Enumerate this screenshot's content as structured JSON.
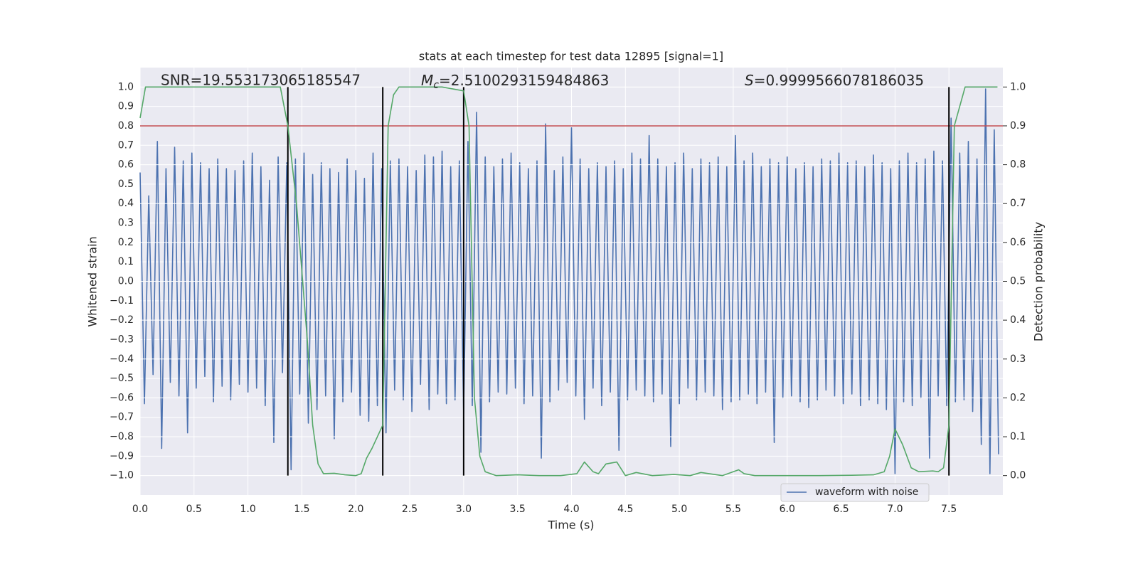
{
  "chart_data": {
    "type": "line",
    "title": "stats at each timestep for test data 12895 [signal=1]",
    "xlabel": "Time (s)",
    "ylabel": "Whitened strain",
    "y2label": "Detection probability",
    "annotations": [
      "SNR=19.553173065185547",
      {
        "base": "M",
        "sub": "c",
        "rest": "=2.5100293159484863"
      },
      {
        "base": "S",
        "rest": "=0.9999566078186035"
      }
    ],
    "xlim": [
      0,
      8.0
    ],
    "ylim": [
      -1.1,
      1.1
    ],
    "y2lim": [
      -0.05,
      1.05
    ],
    "xticks": [
      {
        "value": 0,
        "label": "0.0"
      },
      0.5,
      {
        "value": 1,
        "label": "1.0"
      },
      1.5,
      {
        "value": 2,
        "label": "2.0"
      },
      2.5,
      {
        "value": 3,
        "label": "3.0"
      },
      3.5,
      {
        "value": 4,
        "label": "4.0"
      },
      4.5,
      {
        "value": 5,
        "label": "5.0"
      },
      5.5,
      {
        "value": 6,
        "label": "6.0"
      },
      6.5,
      {
        "value": 7,
        "label": "7.0"
      },
      7.5
    ],
    "yticks": [
      {
        "value": -1,
        "label": "−1.0"
      },
      {
        "value": -0.9,
        "label": "−0.9"
      },
      {
        "value": -0.8,
        "label": "−0.8"
      },
      {
        "value": -0.7,
        "label": "−0.7"
      },
      {
        "value": -0.6,
        "label": "−0.6"
      },
      {
        "value": -0.5,
        "label": "−0.5"
      },
      {
        "value": -0.4,
        "label": "−0.4"
      },
      {
        "value": -0.3,
        "label": "−0.3"
      },
      {
        "value": -0.2,
        "label": "−0.2"
      },
      {
        "value": -0.1,
        "label": "−0.1"
      },
      {
        "value": 0,
        "label": "0.0"
      },
      0.1,
      0.2,
      0.3,
      0.4,
      0.5,
      0.6,
      0.7,
      0.8,
      0.9,
      {
        "value": 1,
        "label": "1.0"
      }
    ],
    "y2ticks": [
      {
        "value": 0,
        "label": "0.0"
      },
      0.1,
      0.2,
      0.3,
      0.4,
      0.5,
      0.6,
      0.7,
      0.8,
      0.9,
      {
        "value": 1,
        "label": "1.0"
      }
    ],
    "grid": true,
    "legend": "lower right",
    "threshold": {
      "value": 0.9,
      "axis": "y2",
      "color": "#c44e52"
    },
    "vlines": {
      "x": [
        1.37,
        2.25,
        3.0,
        7.5
      ],
      "span": [
        0,
        1
      ],
      "axis": "y2",
      "color": "#000000"
    },
    "series": [
      {
        "name": "waveform with noise",
        "color": "#4c72b0",
        "x": [
          0,
          0.04,
          0.08,
          0.12,
          0.16,
          0.2,
          0.24,
          0.28,
          0.32,
          0.36,
          0.4,
          0.44,
          0.48,
          0.52,
          0.56,
          0.6,
          0.64,
          0.68,
          0.72,
          0.76,
          0.8,
          0.84,
          0.88,
          0.92,
          0.96,
          1,
          1.04,
          1.08,
          1.12,
          1.16,
          1.2,
          1.24,
          1.28,
          1.32,
          1.36,
          1.4,
          1.44,
          1.48,
          1.52,
          1.56,
          1.6,
          1.64,
          1.68,
          1.72,
          1.76,
          1.8,
          1.84,
          1.88,
          1.92,
          1.96,
          2,
          2.04,
          2.08,
          2.12,
          2.16,
          2.2,
          2.24,
          2.28,
          2.32,
          2.36,
          2.4,
          2.44,
          2.48,
          2.52,
          2.56,
          2.6,
          2.64,
          2.68,
          2.72,
          2.76,
          2.8,
          2.84,
          2.88,
          2.92,
          2.96,
          3,
          3.04,
          3.08,
          3.12,
          3.16,
          3.2,
          3.24,
          3.28,
          3.32,
          3.36,
          3.4,
          3.44,
          3.48,
          3.52,
          3.56,
          3.6,
          3.64,
          3.68,
          3.72,
          3.76,
          3.8,
          3.84,
          3.88,
          3.92,
          3.96,
          4,
          4.04,
          4.08,
          4.12,
          4.16,
          4.2,
          4.24,
          4.28,
          4.32,
          4.36,
          4.4,
          4.44,
          4.48,
          4.52,
          4.56,
          4.6,
          4.64,
          4.68,
          4.72,
          4.76,
          4.8,
          4.84,
          4.88,
          4.92,
          4.96,
          5,
          5.04,
          5.08,
          5.12,
          5.16,
          5.2,
          5.24,
          5.28,
          5.32,
          5.36,
          5.4,
          5.44,
          5.48,
          5.52,
          5.56,
          5.6,
          5.64,
          5.68,
          5.72,
          5.76,
          5.8,
          5.84,
          5.88,
          5.92,
          5.96,
          6,
          6.04,
          6.08,
          6.12,
          6.16,
          6.2,
          6.24,
          6.28,
          6.32,
          6.36,
          6.4,
          6.44,
          6.48,
          6.52,
          6.56,
          6.6,
          6.64,
          6.68,
          6.72,
          6.76,
          6.8,
          6.84,
          6.88,
          6.92,
          6.96,
          7,
          7.04,
          7.08,
          7.12,
          7.16,
          7.2,
          7.24,
          7.28,
          7.32,
          7.36,
          7.4,
          7.44,
          7.48,
          7.52,
          7.56,
          7.6,
          7.64,
          7.68,
          7.72,
          7.76,
          7.8,
          7.84,
          7.88,
          7.92,
          7.96
        ],
        "values": [
          0.56,
          -0.63,
          0.44,
          -0.48,
          0.72,
          -0.86,
          0.58,
          -0.52,
          0.69,
          -0.59,
          0.62,
          -0.78,
          0.66,
          -0.55,
          0.61,
          -0.49,
          0.58,
          -0.62,
          0.63,
          -0.54,
          0.58,
          -0.61,
          0.57,
          -0.53,
          0.62,
          -0.57,
          0.66,
          -0.55,
          0.59,
          -0.64,
          0.52,
          -0.83,
          0.64,
          -0.47,
          0.61,
          -0.97,
          0.63,
          -0.58,
          0.66,
          -0.73,
          0.55,
          -0.66,
          0.61,
          -0.59,
          0.58,
          -0.81,
          0.56,
          -0.62,
          0.63,
          -0.57,
          0.57,
          -0.69,
          0.53,
          -0.72,
          0.66,
          -0.64,
          0.58,
          -0.78,
          0.62,
          -0.56,
          0.63,
          -0.61,
          0.59,
          -0.67,
          0.57,
          -0.53,
          0.65,
          -0.66,
          0.64,
          -0.58,
          0.67,
          -0.63,
          0.59,
          -0.61,
          0.62,
          -0.68,
          0.72,
          -0.64,
          0.87,
          -0.88,
          0.64,
          -0.62,
          0.59,
          -0.57,
          0.63,
          -0.58,
          0.66,
          -0.55,
          0.61,
          -0.63,
          0.58,
          -0.59,
          0.62,
          -0.91,
          0.81,
          -0.62,
          0.57,
          -0.56,
          0.64,
          -0.52,
          0.79,
          -0.59,
          0.63,
          -0.71,
          0.58,
          -0.55,
          0.61,
          -0.64,
          0.59,
          -0.57,
          0.62,
          -0.87,
          0.58,
          -0.61,
          0.66,
          -0.56,
          0.63,
          -0.59,
          0.75,
          -0.62,
          0.63,
          -0.58,
          0.59,
          -0.85,
          0.61,
          -0.63,
          0.66,
          -0.55,
          0.58,
          -0.61,
          0.63,
          -0.57,
          0.61,
          -0.59,
          0.64,
          -0.66,
          0.59,
          -0.62,
          0.75,
          -0.61,
          0.62,
          -0.58,
          0.66,
          -0.63,
          0.59,
          -0.57,
          0.63,
          -0.83,
          0.61,
          -0.6,
          0.64,
          -0.59,
          0.58,
          -0.62,
          0.61,
          -0.65,
          0.59,
          -0.61,
          0.63,
          -0.56,
          0.62,
          -0.59,
          0.66,
          -0.63,
          0.61,
          -0.58,
          0.62,
          -0.64,
          0.59,
          -0.61,
          0.65,
          -0.63,
          0.61,
          -0.66,
          0.58,
          -0.99,
          0.62,
          -0.62,
          0.66,
          -0.64,
          0.61,
          -0.6,
          0.63,
          -0.91,
          0.67,
          -0.59,
          0.62,
          -0.64,
          0.84,
          -0.62,
          0.66,
          -0.61,
          0.72,
          -0.67,
          0.63,
          -0.84,
          0.99,
          -0.99,
          0.78,
          -0.89
        ]
      },
      {
        "color": "#55a868",
        "axis": "y2",
        "x": [
          0,
          0.05,
          0.1,
          0.2,
          0.4,
          0.6,
          0.8,
          1,
          1.2,
          1.3,
          1.37,
          1.45,
          1.55,
          1.6,
          1.65,
          1.7,
          1.8,
          1.9,
          2,
          2.05,
          2.1,
          2.15,
          2.2,
          2.25,
          2.3,
          2.35,
          2.4,
          2.6,
          2.8,
          2.9,
          3,
          3.05,
          3.1,
          3.15,
          3.2,
          3.3,
          3.5,
          3.7,
          3.9,
          4.05,
          4.12,
          4.2,
          4.25,
          4.32,
          4.42,
          4.5,
          4.6,
          4.75,
          4.95,
          5.1,
          5.2,
          5.4,
          5.5,
          5.55,
          5.6,
          5.7,
          6,
          6.3,
          6.6,
          6.8,
          6.9,
          6.95,
          7,
          7.07,
          7.15,
          7.22,
          7.35,
          7.4,
          7.45,
          7.5,
          7.55,
          7.62,
          7.65,
          7.8,
          7.95
        ],
        "values": [
          0.92,
          1,
          1,
          1,
          1,
          1,
          1,
          1,
          1,
          1,
          0.9,
          0.7,
          0.35,
          0.13,
          0.03,
          0.005,
          0.006,
          0.002,
          0,
          0.005,
          0.045,
          0.07,
          0.1,
          0.13,
          0.9,
          0.98,
          1,
          1,
          1,
          0.995,
          0.99,
          0.9,
          0.2,
          0.05,
          0.01,
          0,
          0.002,
          0,
          0,
          0.005,
          0.035,
          0.01,
          0.005,
          0.03,
          0.035,
          0,
          0.008,
          0,
          0.003,
          0,
          0.008,
          0,
          0.01,
          0.015,
          0.005,
          0,
          0,
          0,
          0.001,
          0.002,
          0.01,
          0.05,
          0.12,
          0.08,
          0.02,
          0.01,
          0.012,
          0.01,
          0.02,
          0.13,
          0.9,
          0.97,
          1,
          1,
          1
        ]
      }
    ]
  }
}
